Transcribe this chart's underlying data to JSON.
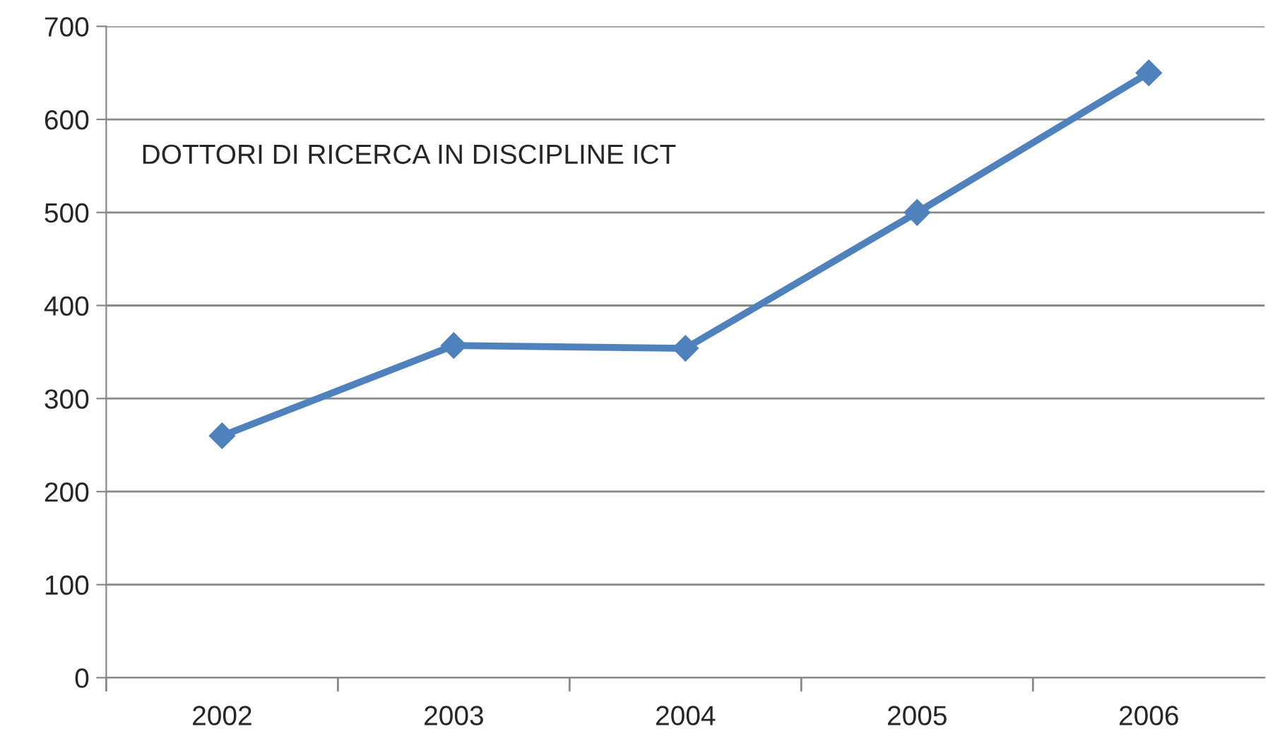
{
  "chart_data": {
    "type": "line",
    "categories": [
      "2002",
      "2003",
      "2004",
      "2005",
      "2006"
    ],
    "series": [
      {
        "color": "#4f81bd",
        "values": [
          260,
          357,
          354,
          500,
          650
        ]
      }
    ],
    "ylim": [
      0,
      700
    ],
    "yticks": [
      0,
      100,
      200,
      300,
      400,
      500,
      600,
      700
    ],
    "grid": "y",
    "marker": "diamond",
    "line_style": "solid",
    "annotations": [
      "DOTTORI DI RICERCA IN DISCIPLINE ICT"
    ]
  }
}
